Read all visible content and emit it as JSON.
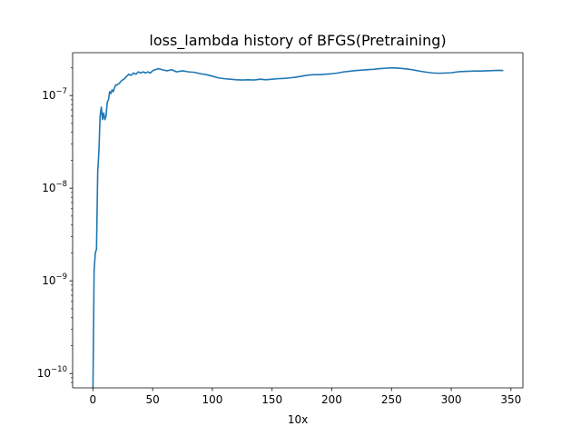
{
  "chart_data": {
    "type": "line",
    "title": "loss_lambda history of BFGS(Pretraining)",
    "xlabel": "10x",
    "ylabel": "",
    "yscale": "log",
    "grid": false,
    "xlim": [
      -17,
      360
    ],
    "ylim": [
      7e-11,
      2.9e-07
    ],
    "xticks": [
      0,
      50,
      100,
      150,
      200,
      250,
      300,
      350
    ],
    "xtick_labels": [
      "0",
      "50",
      "100",
      "150",
      "200",
      "250",
      "300",
      "350"
    ],
    "yticks": [
      1e-10,
      1e-09,
      1e-08,
      1e-07
    ],
    "ytick_labels": [
      {
        "base": "10",
        "exp": "−10"
      },
      {
        "base": "10",
        "exp": "−9"
      },
      {
        "base": "10",
        "exp": "−8"
      },
      {
        "base": "10",
        "exp": "−7"
      }
    ],
    "series": [
      {
        "color": "#1f77b4",
        "x": [
          0,
          1,
          2,
          3,
          4,
          5,
          6,
          7,
          8,
          9,
          10,
          11,
          12,
          13,
          14,
          15,
          16,
          17,
          18,
          19,
          20,
          22,
          24,
          26,
          28,
          30,
          32,
          34,
          36,
          38,
          40,
          42,
          44,
          46,
          48,
          50,
          52,
          55,
          58,
          62,
          66,
          70,
          75,
          80,
          85,
          90,
          95,
          100,
          105,
          110,
          115,
          120,
          125,
          130,
          135,
          140,
          145,
          150,
          155,
          160,
          165,
          170,
          175,
          180,
          185,
          190,
          195,
          200,
          205,
          210,
          215,
          220,
          225,
          230,
          235,
          240,
          245,
          250,
          255,
          260,
          265,
          270,
          275,
          280,
          285,
          290,
          295,
          300,
          305,
          310,
          315,
          320,
          325,
          330,
          335,
          340,
          343
        ],
        "y": [
          6.5e-11,
          1.3e-09,
          2e-09,
          2.2e-09,
          1.5e-08,
          2.5e-08,
          6e-08,
          7.5e-08,
          5.5e-08,
          6.5e-08,
          5.5e-08,
          6e-08,
          8.5e-08,
          9e-08,
          1.1e-07,
          1.05e-07,
          1.15e-07,
          1.1e-07,
          1.2e-07,
          1.3e-07,
          1.3e-07,
          1.35e-07,
          1.45e-07,
          1.5e-07,
          1.6e-07,
          1.7e-07,
          1.65e-07,
          1.75e-07,
          1.7e-07,
          1.8e-07,
          1.75e-07,
          1.8e-07,
          1.75e-07,
          1.8e-07,
          1.75e-07,
          1.85e-07,
          1.9e-07,
          1.95e-07,
          1.9e-07,
          1.85e-07,
          1.9e-07,
          1.8e-07,
          1.85e-07,
          1.8e-07,
          1.78e-07,
          1.72e-07,
          1.68e-07,
          1.62e-07,
          1.55e-07,
          1.52e-07,
          1.5e-07,
          1.48e-07,
          1.47e-07,
          1.48e-07,
          1.47e-07,
          1.5e-07,
          1.48e-07,
          1.5e-07,
          1.52e-07,
          1.53e-07,
          1.55e-07,
          1.58e-07,
          1.62e-07,
          1.66e-07,
          1.68e-07,
          1.68e-07,
          1.7e-07,
          1.72e-07,
          1.75e-07,
          1.8e-07,
          1.83e-07,
          1.86e-07,
          1.88e-07,
          1.9e-07,
          1.92e-07,
          1.95e-07,
          1.97e-07,
          1.99e-07,
          1.98e-07,
          1.95e-07,
          1.92e-07,
          1.87e-07,
          1.82e-07,
          1.78e-07,
          1.75e-07,
          1.74e-07,
          1.75e-07,
          1.76e-07,
          1.8e-07,
          1.82e-07,
          1.83e-07,
          1.84e-07,
          1.84e-07,
          1.85e-07,
          1.86e-07,
          1.87e-07,
          1.86e-07
        ]
      }
    ]
  }
}
